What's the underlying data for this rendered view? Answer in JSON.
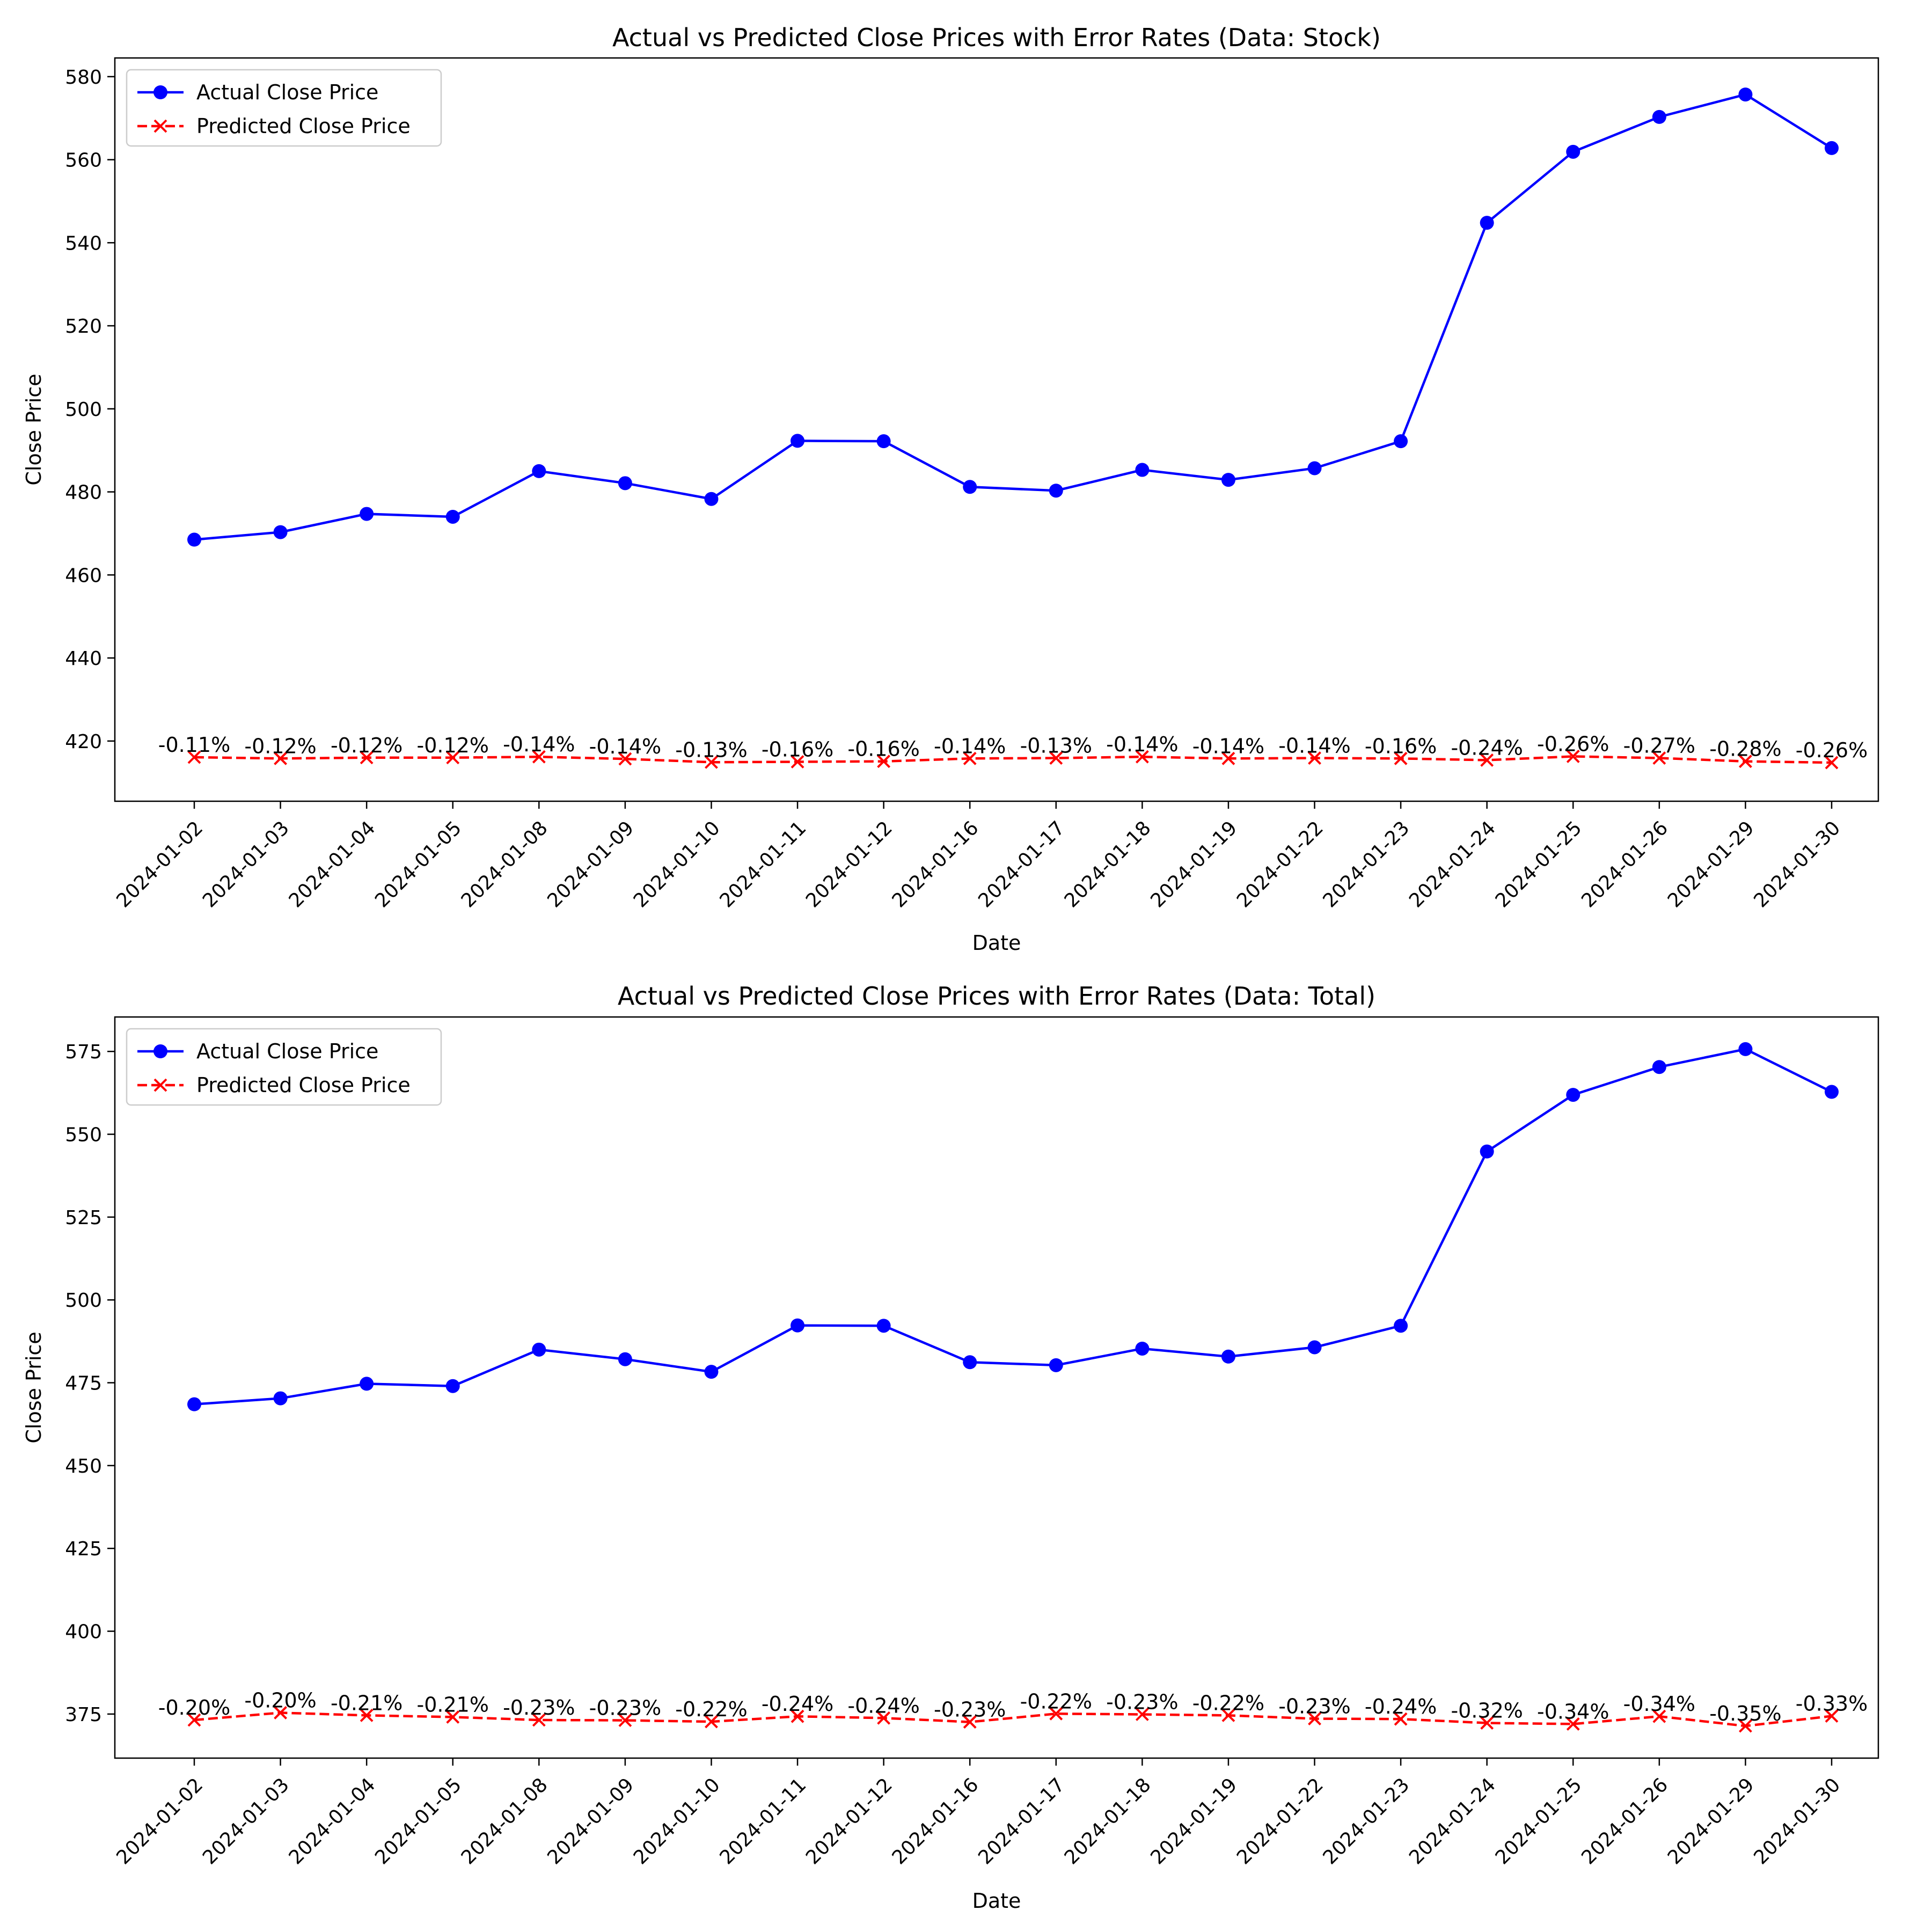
{
  "chart_data": [
    {
      "type": "line",
      "title": "Actual vs Predicted Close Prices with Error Rates (Data: Stock)",
      "xlabel": "Date",
      "ylabel": "Close Price",
      "ylim": [
        405.5,
        584.5
      ],
      "yticks": [
        420,
        440,
        460,
        480,
        500,
        520,
        540,
        560,
        580
      ],
      "legend_position": "top-left",
      "categories": [
        "2024-01-02",
        "2024-01-03",
        "2024-01-04",
        "2024-01-05",
        "2024-01-08",
        "2024-01-09",
        "2024-01-10",
        "2024-01-11",
        "2024-01-12",
        "2024-01-16",
        "2024-01-17",
        "2024-01-18",
        "2024-01-19",
        "2024-01-22",
        "2024-01-23",
        "2024-01-24",
        "2024-01-25",
        "2024-01-26",
        "2024-01-29",
        "2024-01-30"
      ],
      "series": [
        {
          "name": "Actual Close Price",
          "color": "#0000ff",
          "style": "solid",
          "marker": "circle",
          "values": [
            468.5,
            470.3,
            474.7,
            474.0,
            485.0,
            482.1,
            478.3,
            492.3,
            492.2,
            481.2,
            480.3,
            485.3,
            482.9,
            485.7,
            492.2,
            544.8,
            561.9,
            570.3,
            575.7,
            562.8
          ]
        },
        {
          "name": "Predicted Close Price",
          "color": "#ff0000",
          "style": "dashed",
          "marker": "x",
          "values": [
            416.1,
            415.8,
            416.0,
            416.0,
            416.2,
            415.7,
            414.9,
            415.0,
            415.1,
            415.8,
            415.9,
            416.2,
            415.8,
            415.9,
            415.8,
            415.4,
            416.3,
            415.9,
            415.1,
            414.8
          ]
        }
      ],
      "error_labels": [
        "-0.11%",
        "-0.12%",
        "-0.12%",
        "-0.12%",
        "-0.14%",
        "-0.14%",
        "-0.13%",
        "-0.16%",
        "-0.16%",
        "-0.14%",
        "-0.13%",
        "-0.14%",
        "-0.14%",
        "-0.14%",
        "-0.16%",
        "-0.24%",
        "-0.26%",
        "-0.27%",
        "-0.28%",
        "-0.26%"
      ]
    },
    {
      "type": "line",
      "title": "Actual vs Predicted Close Prices with Error Rates (Data: Total)",
      "xlabel": "Date",
      "ylabel": "Close Price",
      "ylim": [
        361.7,
        585.4
      ],
      "yticks": [
        375,
        400,
        425,
        450,
        475,
        500,
        525,
        550,
        575
      ],
      "legend_position": "top-left",
      "categories": [
        "2024-01-02",
        "2024-01-03",
        "2024-01-04",
        "2024-01-05",
        "2024-01-08",
        "2024-01-09",
        "2024-01-10",
        "2024-01-11",
        "2024-01-12",
        "2024-01-16",
        "2024-01-17",
        "2024-01-18",
        "2024-01-19",
        "2024-01-22",
        "2024-01-23",
        "2024-01-24",
        "2024-01-25",
        "2024-01-26",
        "2024-01-29",
        "2024-01-30"
      ],
      "series": [
        {
          "name": "Actual Close Price",
          "color": "#0000ff",
          "style": "solid",
          "marker": "circle",
          "values": [
            468.5,
            470.3,
            474.7,
            474.0,
            485.0,
            482.1,
            478.3,
            492.3,
            492.2,
            481.2,
            480.3,
            485.3,
            482.9,
            485.7,
            492.2,
            544.8,
            561.9,
            570.3,
            575.7,
            562.8
          ]
        },
        {
          "name": "Predicted Close Price",
          "color": "#ff0000",
          "style": "dashed",
          "marker": "x",
          "values": [
            373.2,
            375.4,
            374.6,
            374.1,
            373.2,
            373.1,
            372.7,
            374.3,
            373.8,
            372.6,
            375.1,
            374.9,
            374.6,
            373.6,
            373.5,
            372.3,
            372.0,
            374.3,
            371.4,
            374.4
          ]
        }
      ],
      "error_labels": [
        "-0.20%",
        "-0.20%",
        "-0.21%",
        "-0.21%",
        "-0.23%",
        "-0.23%",
        "-0.22%",
        "-0.24%",
        "-0.24%",
        "-0.23%",
        "-0.22%",
        "-0.23%",
        "-0.22%",
        "-0.23%",
        "-0.24%",
        "-0.32%",
        "-0.34%",
        "-0.34%",
        "-0.35%",
        "-0.33%"
      ]
    }
  ]
}
